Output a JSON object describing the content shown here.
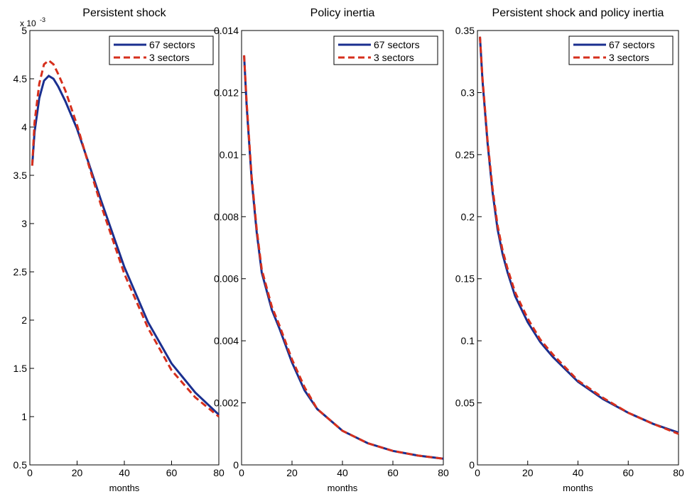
{
  "chart_data": [
    {
      "type": "line",
      "title": "Persistent shock",
      "xlabel": "months",
      "y_scale_label": "x 10",
      "y_scale_exponent": "-3",
      "xlim": [
        0,
        80
      ],
      "xticks": [
        0,
        20,
        40,
        60,
        80
      ],
      "ylim": [
        0.5,
        5
      ],
      "yticks": [
        0.5,
        1,
        1.5,
        2,
        2.5,
        3,
        3.5,
        4,
        4.5,
        5
      ],
      "legend": "upper right",
      "x": [
        1,
        2,
        4,
        6,
        8,
        10,
        12,
        15,
        20,
        25,
        30,
        40,
        50,
        60,
        70,
        80
      ],
      "series": [
        {
          "name": "67 sectors",
          "color": "#1a2f8f",
          "style": "solid",
          "values": [
            3.6,
            3.95,
            4.3,
            4.48,
            4.53,
            4.5,
            4.42,
            4.27,
            3.98,
            3.62,
            3.25,
            2.55,
            1.98,
            1.55,
            1.25,
            1.02
          ]
        },
        {
          "name": "3 sectors",
          "color": "#d62f1c",
          "style": "dashed",
          "values": [
            3.6,
            4.05,
            4.45,
            4.65,
            4.69,
            4.65,
            4.55,
            4.38,
            4.02,
            3.6,
            3.2,
            2.48,
            1.92,
            1.48,
            1.2,
            1.0
          ]
        }
      ]
    },
    {
      "type": "line",
      "title": "Policy inertia",
      "xlabel": "months",
      "xlim": [
        0,
        80
      ],
      "xticks": [
        0,
        20,
        40,
        60,
        80
      ],
      "ylim": [
        0,
        0.014
      ],
      "yticks": [
        0,
        0.002,
        0.004,
        0.006,
        0.008,
        0.01,
        0.012,
        0.014
      ],
      "legend": "upper right",
      "x": [
        1,
        2,
        4,
        6,
        8,
        10,
        12,
        15,
        20,
        25,
        30,
        40,
        50,
        60,
        70,
        80
      ],
      "series": [
        {
          "name": "67 sectors",
          "color": "#1a2f8f",
          "style": "solid",
          "values": [
            0.0132,
            0.0116,
            0.0092,
            0.0075,
            0.0062,
            0.0056,
            0.005,
            0.0044,
            0.0033,
            0.0024,
            0.0018,
            0.0011,
            0.0007,
            0.00045,
            0.0003,
            0.0002
          ]
        },
        {
          "name": "3 sectors",
          "color": "#d62f1c",
          "style": "dashed",
          "values": [
            0.0132,
            0.0117,
            0.0093,
            0.0076,
            0.0063,
            0.0057,
            0.0051,
            0.0045,
            0.0034,
            0.0025,
            0.0018,
            0.0011,
            0.0007,
            0.00045,
            0.0003,
            0.0002
          ]
        }
      ]
    },
    {
      "type": "line",
      "title": "Persistent shock and policy inertia",
      "xlabel": "months",
      "xlim": [
        0,
        80
      ],
      "xticks": [
        0,
        20,
        40,
        60,
        80
      ],
      "ylim": [
        0,
        0.35
      ],
      "yticks": [
        0,
        0.05,
        0.1,
        0.15,
        0.2,
        0.25,
        0.3,
        0.35
      ],
      "legend": "upper right",
      "x": [
        1,
        2,
        4,
        6,
        8,
        10,
        12,
        15,
        20,
        25,
        30,
        40,
        50,
        60,
        70,
        80
      ],
      "series": [
        {
          "name": "67 sectors",
          "color": "#1a2f8f",
          "style": "solid",
          "values": [
            0.345,
            0.31,
            0.26,
            0.22,
            0.19,
            0.17,
            0.155,
            0.136,
            0.115,
            0.099,
            0.087,
            0.067,
            0.053,
            0.042,
            0.033,
            0.026
          ]
        },
        {
          "name": "3 sectors",
          "color": "#d62f1c",
          "style": "dashed",
          "values": [
            0.345,
            0.312,
            0.262,
            0.223,
            0.193,
            0.173,
            0.158,
            0.139,
            0.118,
            0.101,
            0.089,
            0.068,
            0.054,
            0.042,
            0.033,
            0.025
          ]
        }
      ]
    }
  ]
}
